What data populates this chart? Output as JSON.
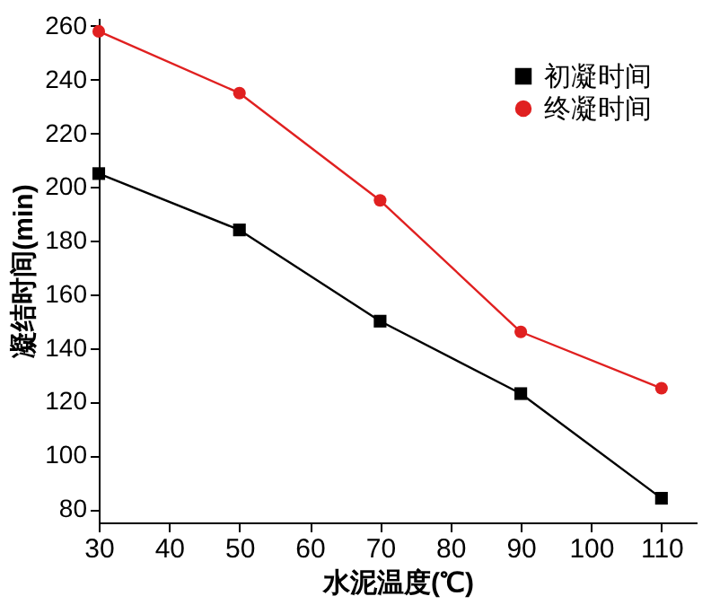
{
  "chart_data": {
    "type": "line",
    "xlabel": "水泥温度(℃)",
    "ylabel": "凝结时间(min)",
    "x": [
      30,
      50,
      70,
      90,
      110
    ],
    "series": [
      {
        "name": "初凝时间",
        "color": "#000000",
        "marker": "square",
        "values": [
          205,
          184,
          150,
          123,
          84
        ]
      },
      {
        "name": "终凝时间",
        "color": "#e02020",
        "marker": "circle",
        "values": [
          258,
          235,
          195,
          146,
          125
        ]
      }
    ],
    "xlim": [
      30,
      115
    ],
    "xticks": [
      30,
      40,
      50,
      60,
      70,
      80,
      90,
      100,
      110
    ],
    "ylim": [
      75,
      263
    ],
    "yticks": [
      80,
      100,
      120,
      140,
      160,
      180,
      200,
      220,
      240,
      260
    ],
    "grid": false,
    "legend": "top right",
    "line_style": "solid"
  }
}
